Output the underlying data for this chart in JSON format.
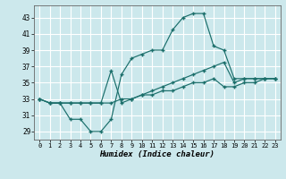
{
  "xlabel": "Humidex (Indice chaleur)",
  "bg_color": "#cce8ec",
  "grid_color": "#ffffff",
  "line_color": "#1a6e6a",
  "xlim": [
    -0.5,
    23.5
  ],
  "ylim": [
    28.0,
    44.5
  ],
  "xticks": [
    0,
    1,
    2,
    3,
    4,
    5,
    6,
    7,
    8,
    9,
    10,
    11,
    12,
    13,
    14,
    15,
    16,
    17,
    18,
    19,
    20,
    21,
    22,
    23
  ],
  "yticks": [
    29,
    31,
    33,
    35,
    37,
    39,
    41,
    43
  ],
  "line1_x": [
    0,
    1,
    2,
    3,
    4,
    5,
    6,
    7,
    8,
    9,
    10,
    11,
    12,
    13,
    14,
    15,
    16,
    17,
    18,
    19,
    20,
    21,
    22,
    23
  ],
  "line1_y": [
    33,
    32.5,
    32.5,
    30.5,
    30.5,
    29,
    29,
    30.5,
    36,
    38,
    38.5,
    39,
    39,
    41.5,
    43,
    43.5,
    43.5,
    39.5,
    39,
    35.5,
    35.5,
    35.5,
    35.5,
    35.5
  ],
  "line2_x": [
    0,
    1,
    2,
    3,
    4,
    5,
    6,
    7,
    8,
    9,
    10,
    11,
    12,
    13,
    14,
    15,
    16,
    17,
    18,
    19,
    20,
    21,
    22,
    23
  ],
  "line2_y": [
    33,
    32.5,
    32.5,
    32.5,
    32.5,
    32.5,
    32.5,
    36.5,
    32.5,
    33,
    33.5,
    34,
    34.5,
    35.0,
    35.5,
    36.0,
    36.5,
    37.0,
    37.5,
    35.0,
    35.5,
    35.5,
    35.5,
    35.5
  ],
  "line3_x": [
    0,
    1,
    2,
    3,
    4,
    5,
    6,
    7,
    8,
    9,
    10,
    11,
    12,
    13,
    14,
    15,
    16,
    17,
    18,
    19,
    20,
    21,
    22,
    23
  ],
  "line3_y": [
    33,
    32.5,
    32.5,
    32.5,
    32.5,
    32.5,
    32.5,
    32.5,
    33.0,
    33.0,
    33.5,
    33.5,
    34.0,
    34.0,
    34.5,
    35.0,
    35.0,
    35.5,
    34.5,
    34.5,
    35.0,
    35.0,
    35.5,
    35.5
  ]
}
